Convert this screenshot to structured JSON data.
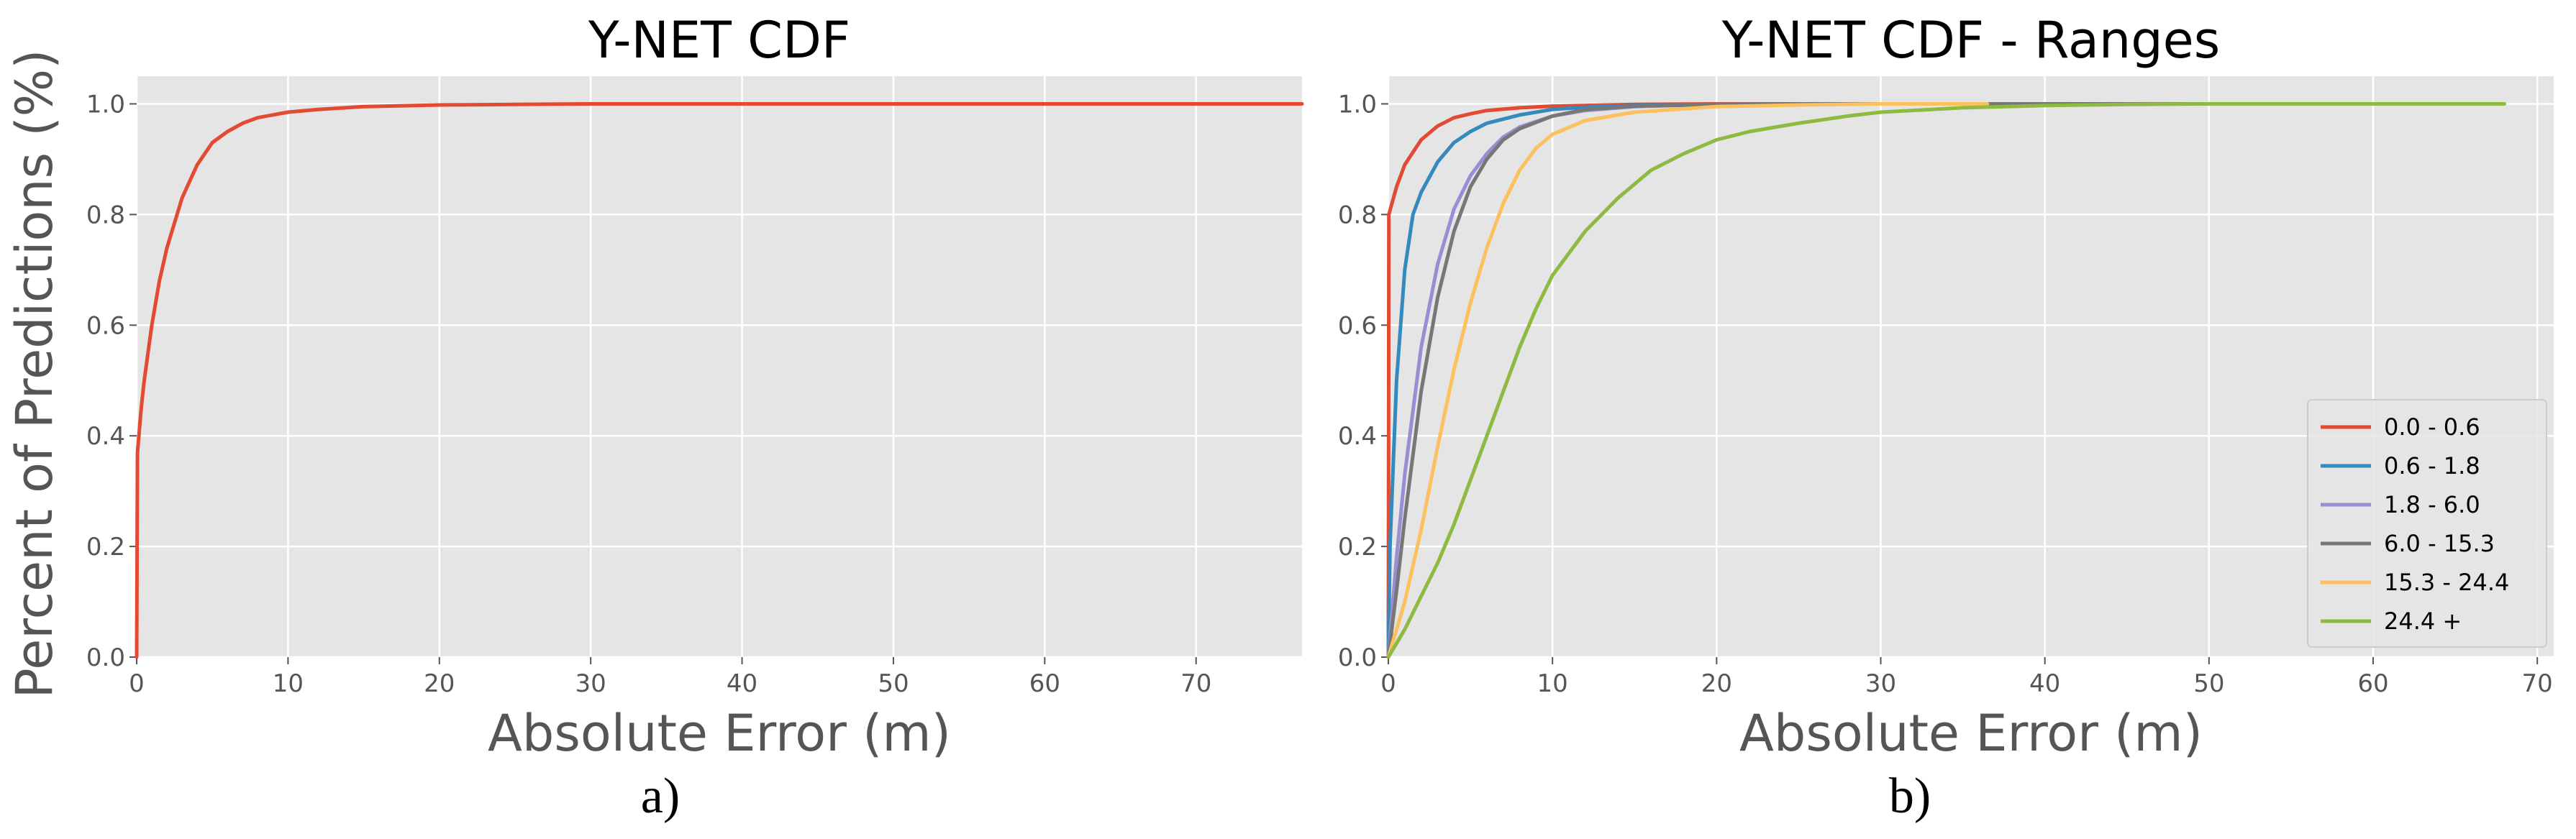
{
  "figure": {
    "ylabel": "Percent of Predictions (%)"
  },
  "chart_data": [
    {
      "type": "line",
      "title": "Y-NET CDF",
      "xlabel": "Absolute Error (m)",
      "ylabel": "Percent of Predictions (%)",
      "caption": "a)",
      "xlim": [
        0,
        77
      ],
      "ylim": [
        0,
        1.05
      ],
      "xticks": [
        0,
        10,
        20,
        30,
        40,
        50,
        60,
        70
      ],
      "yticks": [
        0.0,
        0.2,
        0.4,
        0.6,
        0.8,
        1.0
      ],
      "grid": true,
      "series": [
        {
          "color": "#E24A33",
          "x": [
            0,
            0.05,
            0.3,
            0.5,
            1,
            1.5,
            2,
            3,
            4,
            5,
            6,
            7,
            8,
            10,
            12,
            15,
            20,
            25,
            30,
            40,
            50,
            60,
            77
          ],
          "y": [
            0.0,
            0.37,
            0.45,
            0.5,
            0.6,
            0.68,
            0.74,
            0.83,
            0.89,
            0.93,
            0.95,
            0.965,
            0.975,
            0.985,
            0.99,
            0.995,
            0.998,
            0.999,
            1.0,
            1.0,
            1.0,
            1.0,
            1.0
          ]
        }
      ]
    },
    {
      "type": "line",
      "title": "Y-NET CDF - Ranges",
      "xlabel": "Absolute Error (m)",
      "caption": "b)",
      "xlim": [
        0,
        71
      ],
      "ylim": [
        0,
        1.05
      ],
      "xticks": [
        0,
        10,
        20,
        30,
        40,
        50,
        60,
        70
      ],
      "yticks": [
        0.0,
        0.2,
        0.4,
        0.6,
        0.8,
        1.0
      ],
      "grid": true,
      "legend_position": "bottom-right",
      "series": [
        {
          "name": "0.0 - 0.6",
          "color": "#E24A33",
          "x": [
            0,
            0.03,
            0.5,
            1,
            2,
            3,
            4,
            5,
            6,
            8,
            10,
            15,
            20,
            25,
            30,
            40,
            50
          ],
          "y": [
            0.0,
            0.8,
            0.85,
            0.89,
            0.935,
            0.96,
            0.975,
            0.982,
            0.988,
            0.993,
            0.996,
            0.999,
            1.0,
            1.0,
            1.0,
            1.0,
            1.0
          ]
        },
        {
          "name": "0.6 - 1.8",
          "color": "#348ABD",
          "x": [
            0,
            0.1,
            0.5,
            1,
            1.5,
            2,
            3,
            4,
            5,
            6,
            8,
            10,
            12,
            15,
            20,
            25,
            30,
            36.5
          ],
          "y": [
            0.0,
            0.2,
            0.5,
            0.7,
            0.8,
            0.84,
            0.895,
            0.93,
            0.95,
            0.965,
            0.98,
            0.99,
            0.994,
            0.997,
            0.999,
            1.0,
            1.0,
            1.0
          ]
        },
        {
          "name": "1.8 - 6.0",
          "color": "#988ED5",
          "x": [
            0,
            0.5,
            1,
            2,
            3,
            4,
            5,
            6,
            7,
            8,
            10,
            12,
            15,
            20,
            25,
            30,
            36.5
          ],
          "y": [
            0.0,
            0.18,
            0.33,
            0.56,
            0.71,
            0.81,
            0.87,
            0.91,
            0.94,
            0.958,
            0.978,
            0.988,
            0.995,
            0.999,
            1.0,
            1.0,
            1.0
          ]
        },
        {
          "name": "6.0 - 15.3",
          "color": "#777777",
          "x": [
            0,
            0.5,
            1,
            2,
            3,
            4,
            5,
            6,
            7,
            8,
            10,
            12,
            15,
            20,
            25,
            30,
            40,
            50
          ],
          "y": [
            0.0,
            0.12,
            0.25,
            0.48,
            0.65,
            0.77,
            0.85,
            0.9,
            0.935,
            0.955,
            0.978,
            0.99,
            0.996,
            0.999,
            1.0,
            1.0,
            1.0,
            1.0
          ]
        },
        {
          "name": "15.3 - 24.4",
          "color": "#FBC15E",
          "x": [
            0,
            0.5,
            1,
            2,
            3,
            4,
            5,
            6,
            7,
            8,
            9,
            10,
            12,
            15,
            20,
            25,
            30,
            36.5
          ],
          "y": [
            0.0,
            0.05,
            0.1,
            0.23,
            0.38,
            0.52,
            0.64,
            0.74,
            0.82,
            0.88,
            0.92,
            0.945,
            0.97,
            0.985,
            0.995,
            0.998,
            1.0,
            1.0
          ]
        },
        {
          "name": "24.4 +",
          "color": "#8EBA42",
          "x": [
            0,
            1,
            2,
            3,
            4,
            5,
            6,
            7,
            8,
            9,
            10,
            12,
            14,
            16,
            18,
            20,
            22,
            25,
            28,
            30,
            35,
            40,
            45,
            50,
            55,
            60,
            68
          ],
          "y": [
            0.0,
            0.05,
            0.11,
            0.17,
            0.24,
            0.32,
            0.4,
            0.48,
            0.56,
            0.63,
            0.69,
            0.77,
            0.83,
            0.88,
            0.91,
            0.935,
            0.95,
            0.965,
            0.978,
            0.985,
            0.993,
            0.997,
            0.999,
            1.0,
            1.0,
            1.0,
            1.0
          ]
        }
      ]
    }
  ]
}
